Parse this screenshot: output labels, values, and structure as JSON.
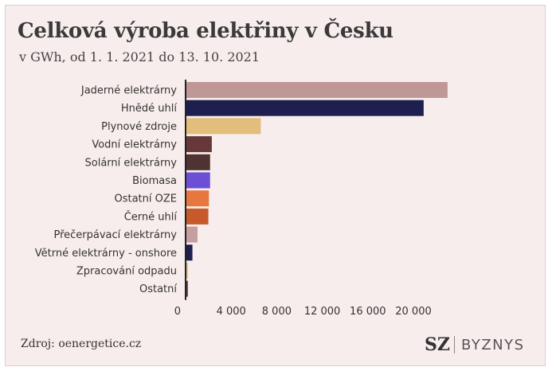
{
  "header": {
    "title": "Celková výroba elektřiny v Česku",
    "subtitle": "v GWh, od 1. 1. 2021 do 13. 10. 2021"
  },
  "footer": {
    "source": "Zdroj: oenergetice.cz",
    "logo_mark": "SZ",
    "logo_text": "BYZNYS"
  },
  "chart_data": {
    "type": "bar",
    "orientation": "horizontal",
    "title": "Celková výroba elektřiny v Česku",
    "subtitle": "v GWh, od 1. 1. 2021 do 13. 10. 2021",
    "categories": [
      "Jaderné elektrárny",
      "Hnědé uhlí",
      "Plynové zdroje",
      "Vodní elektrárny",
      "Solární elektrárny",
      "Biomasa",
      "Ostatní OZE",
      "Černé uhlí",
      "Přečerpávací elektrárny",
      "Větrné elektrárny - onshore",
      "Zpracování odpadu",
      "Ostatní"
    ],
    "values": [
      23000,
      20900,
      6600,
      2300,
      2150,
      2150,
      2050,
      2000,
      1050,
      600,
      200,
      200
    ],
    "colors": [
      "#bf9797",
      "#1f1f4f",
      "#e2bd7c",
      "#66383a",
      "#4f3232",
      "#6b4fd6",
      "#e5773f",
      "#c65a2b",
      "#c79e9e",
      "#1f1f4f",
      "#e2bd7c",
      "#66383a"
    ],
    "xlim": [
      0,
      23000
    ],
    "xticks": [
      0,
      4000,
      8000,
      12000,
      16000,
      20000
    ],
    "xtick_labels": [
      "0",
      "4 000",
      "8 000",
      "12 000",
      "16 000",
      "20 000"
    ],
    "grid": false,
    "legend": "none"
  }
}
